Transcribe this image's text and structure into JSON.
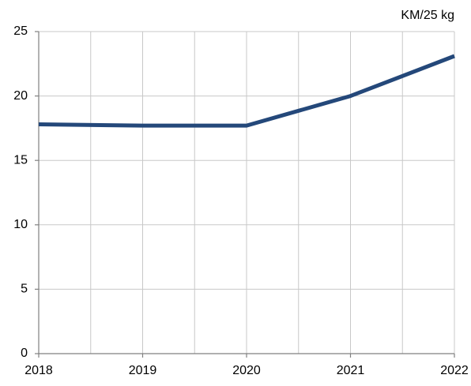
{
  "chart_data": {
    "type": "line",
    "unit_label": "KM/25 kg",
    "x": [
      2018,
      2019,
      2020,
      2021,
      2022
    ],
    "series": [
      {
        "color": "#24487a",
        "values": [
          17.8,
          17.7,
          17.7,
          20.0,
          23.1
        ]
      }
    ],
    "xlim": [
      2018,
      2022
    ],
    "xticks": [
      2018,
      2019,
      2020,
      2021,
      2022
    ],
    "ylim": [
      0,
      25
    ],
    "yticks": [
      0,
      5,
      10,
      15,
      20,
      25
    ],
    "grid": true
  }
}
